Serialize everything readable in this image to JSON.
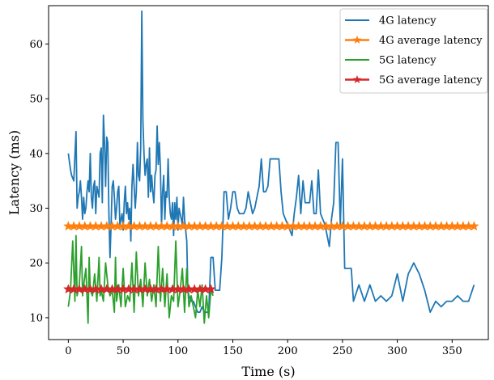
{
  "chart_data": {
    "type": "line",
    "xlabel": "Time (s)",
    "ylabel": "Latency (ms)",
    "xlim": [
      -18,
      383
    ],
    "ylim": [
      6,
      67
    ],
    "xticks": [
      0,
      50,
      100,
      150,
      200,
      250,
      300,
      350
    ],
    "yticks": [
      10,
      20,
      30,
      40,
      50,
      60
    ],
    "grid": false,
    "legend_position": "top-right",
    "series": [
      {
        "name": "4G latency",
        "color": "#1f77b4",
        "marker": "none",
        "x": [
          0,
          2,
          3,
          5,
          7,
          8,
          9,
          10,
          11,
          12,
          13,
          14,
          15,
          16,
          17,
          18,
          19,
          20,
          21,
          22,
          23,
          24,
          25,
          26,
          27,
          28,
          29,
          30,
          31,
          32,
          33,
          34,
          35,
          36,
          37,
          38,
          39,
          40,
          41,
          42,
          43,
          44,
          45,
          46,
          47,
          48,
          49,
          50,
          51,
          52,
          53,
          54,
          55,
          56,
          57,
          58,
          59,
          60,
          61,
          62,
          63,
          64,
          65,
          66,
          67,
          68,
          69,
          70,
          71,
          72,
          73,
          74,
          75,
          76,
          77,
          78,
          79,
          80,
          81,
          82,
          83,
          84,
          85,
          86,
          87,
          88,
          89,
          90,
          91,
          92,
          93,
          94,
          95,
          96,
          97,
          98,
          99,
          100,
          101,
          102,
          103,
          104,
          105,
          106,
          107,
          108,
          109,
          110,
          112,
          114,
          116,
          118,
          120,
          122,
          124,
          126,
          128,
          130,
          132,
          134,
          136,
          138,
          140,
          142,
          144,
          146,
          148,
          150,
          152,
          154,
          156,
          158,
          160,
          162,
          164,
          166,
          168,
          170,
          172,
          174,
          176,
          178,
          180,
          182,
          184,
          186,
          188,
          190,
          192,
          194,
          196,
          198,
          200,
          202,
          204,
          206,
          208,
          210,
          212,
          214,
          216,
          218,
          220,
          222,
          224,
          226,
          228,
          230,
          232,
          234,
          236,
          238,
          240,
          242,
          244,
          246,
          248,
          250,
          252,
          254,
          256,
          258,
          260,
          265,
          270,
          275,
          280,
          285,
          290,
          295,
          300,
          305,
          310,
          315,
          320,
          325,
          330,
          335,
          340,
          345,
          350,
          355,
          360,
          365,
          370
        ],
        "y": [
          40,
          37,
          36,
          35,
          44,
          30,
          32,
          33,
          35,
          32,
          28,
          32,
          29,
          30,
          33,
          35,
          33,
          40,
          32,
          30,
          34,
          35,
          29,
          34,
          33,
          32,
          40,
          41,
          31,
          47,
          42,
          34,
          43,
          42,
          29,
          21,
          27,
          34,
          35,
          32,
          28,
          30,
          33,
          34,
          27,
          28,
          29,
          26,
          31,
          34,
          29,
          31,
          28,
          30,
          24,
          34,
          38,
          34,
          30,
          33,
          42,
          36,
          35,
          41,
          66,
          46,
          40,
          36,
          38,
          39,
          32,
          41,
          33,
          36,
          33,
          31,
          36,
          37,
          45,
          38,
          42,
          37,
          27,
          33,
          36,
          28,
          33,
          32,
          39,
          32,
          29,
          28,
          31,
          25,
          31,
          28,
          32,
          26,
          30,
          29,
          28,
          27,
          32,
          28,
          26,
          24,
          15,
          14,
          13,
          13,
          12,
          11,
          11,
          12,
          11,
          11,
          11,
          21,
          21,
          15,
          15,
          15,
          21,
          33,
          33,
          28,
          30,
          33,
          33,
          30,
          29,
          29,
          29,
          30,
          33,
          31,
          29,
          30,
          32,
          34,
          39,
          33,
          33,
          34,
          39,
          39,
          39,
          39,
          39,
          33,
          29,
          28,
          27,
          26,
          25,
          29,
          32,
          36,
          29,
          35,
          31,
          31,
          31,
          35,
          29,
          29,
          37,
          29,
          28,
          27,
          25,
          23,
          28,
          31,
          42,
          42,
          27,
          39,
          19,
          19,
          19,
          19,
          13,
          16,
          13,
          16,
          13,
          14,
          13,
          14,
          18,
          13,
          18,
          20,
          18,
          15,
          11,
          13,
          12,
          13,
          13,
          14,
          13,
          13,
          16
        ],
        "lines": true
      },
      {
        "name": "4G average latency",
        "color": "#ff7f0e",
        "marker": "star",
        "x": [
          0,
          5,
          10,
          15,
          20,
          25,
          30,
          35,
          40,
          45,
          50,
          55,
          60,
          65,
          70,
          75,
          80,
          85,
          90,
          95,
          100,
          105,
          110,
          115,
          120,
          125,
          130,
          135,
          140,
          145,
          150,
          155,
          160,
          165,
          170,
          175,
          180,
          185,
          190,
          195,
          200,
          205,
          210,
          215,
          220,
          225,
          230,
          235,
          240,
          245,
          250,
          255,
          260,
          265,
          270,
          275,
          280,
          285,
          290,
          295,
          300,
          305,
          310,
          315,
          320,
          325,
          330,
          335,
          340,
          345,
          350,
          355,
          360,
          365,
          370
        ],
        "y": [
          26.7,
          26.7,
          26.7,
          26.7,
          26.7,
          26.7,
          26.7,
          26.7,
          26.7,
          26.7,
          26.7,
          26.7,
          26.7,
          26.7,
          26.7,
          26.7,
          26.7,
          26.7,
          26.7,
          26.7,
          26.7,
          26.7,
          26.7,
          26.7,
          26.7,
          26.7,
          26.7,
          26.7,
          26.7,
          26.7,
          26.7,
          26.7,
          26.7,
          26.7,
          26.7,
          26.7,
          26.7,
          26.7,
          26.7,
          26.7,
          26.7,
          26.7,
          26.7,
          26.7,
          26.7,
          26.7,
          26.7,
          26.7,
          26.7,
          26.7,
          26.7,
          26.7,
          26.7,
          26.7,
          26.7,
          26.7,
          26.7,
          26.7,
          26.7,
          26.7,
          26.7,
          26.7,
          26.7,
          26.7,
          26.7,
          26.7,
          26.7,
          26.7,
          26.7,
          26.7,
          26.7,
          26.7,
          26.7,
          26.7,
          26.7
        ]
      },
      {
        "name": "5G latency",
        "color": "#2ca02c",
        "marker": "none",
        "x": [
          0,
          2,
          4,
          6,
          7,
          8,
          10,
          12,
          13,
          14,
          16,
          18,
          19,
          20,
          22,
          24,
          26,
          28,
          29,
          30,
          32,
          34,
          36,
          38,
          40,
          42,
          43,
          44,
          46,
          48,
          50,
          52,
          54,
          56,
          58,
          60,
          62,
          64,
          66,
          68,
          70,
          72,
          74,
          76,
          78,
          80,
          82,
          84,
          86,
          88,
          90,
          92,
          94,
          96,
          98,
          100,
          102,
          104,
          106,
          108,
          110,
          112,
          114,
          116,
          118,
          120,
          122,
          124,
          126,
          128,
          130,
          132
        ],
        "y": [
          12,
          15,
          24,
          13,
          25,
          14,
          16,
          23,
          14,
          16,
          19,
          9,
          21,
          15,
          14,
          18,
          13,
          21,
          14,
          15,
          13,
          20,
          16,
          14,
          15,
          11,
          21,
          13,
          16,
          12,
          19,
          12,
          14,
          13,
          20,
          11,
          22,
          14,
          17,
          12,
          20,
          14,
          17,
          13,
          16,
          12,
          23,
          13,
          19,
          12,
          18,
          10,
          14,
          13,
          24,
          12,
          15,
          19,
          11,
          19,
          12,
          14,
          12,
          10,
          15,
          12,
          16,
          9,
          14,
          10,
          15,
          14
        ],
        "lines": true
      },
      {
        "name": "5G average latency",
        "color": "#d62728",
        "marker": "star",
        "x": [
          0,
          5,
          10,
          15,
          20,
          25,
          30,
          35,
          40,
          45,
          50,
          55,
          60,
          65,
          70,
          75,
          80,
          85,
          90,
          95,
          100,
          105,
          110,
          115,
          120,
          125,
          130
        ],
        "y": [
          15.2,
          15.2,
          15.2,
          15.2,
          15.2,
          15.2,
          15.2,
          15.2,
          15.2,
          15.2,
          15.2,
          15.2,
          15.2,
          15.2,
          15.2,
          15.2,
          15.2,
          15.2,
          15.2,
          15.2,
          15.2,
          15.2,
          15.2,
          15.2,
          15.2,
          15.2,
          15.2
        ]
      }
    ]
  }
}
